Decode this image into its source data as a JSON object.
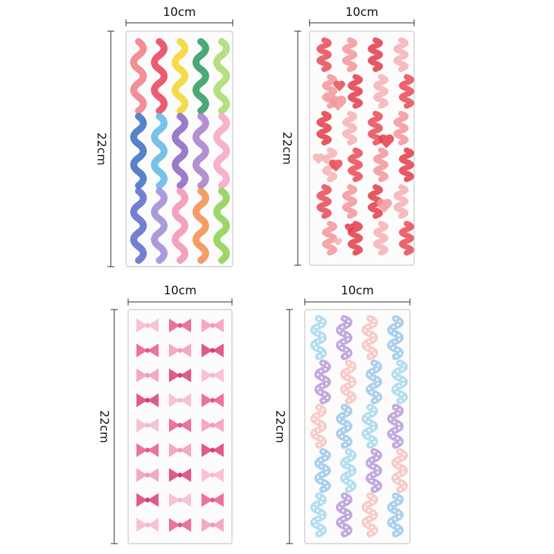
{
  "sheets": [
    {
      "width_label": "10cm",
      "height_label": "22cm"
    },
    {
      "width_label": "10cm",
      "height_label": "22cm"
    },
    {
      "width_label": "10cm",
      "height_label": "22cm"
    },
    {
      "width_label": "10cm",
      "height_label": "22cm"
    }
  ]
}
